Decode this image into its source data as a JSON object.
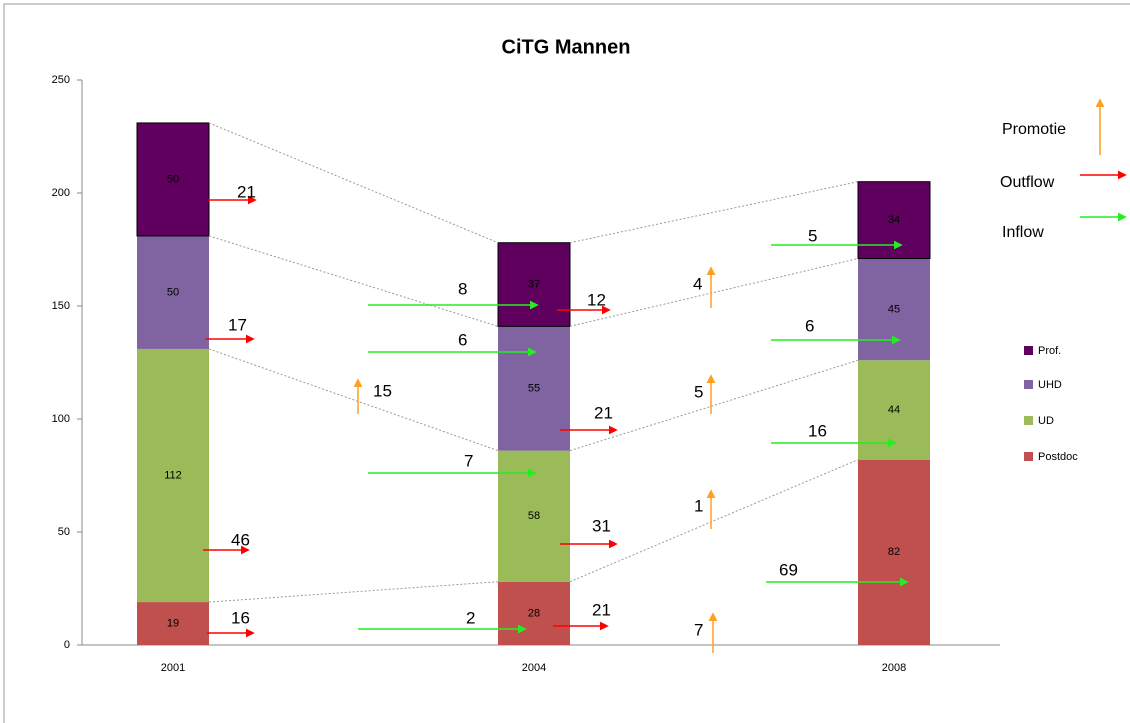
{
  "chart_data": {
    "type": "stacked_bar",
    "title": "CiTG Mannen",
    "categories": [
      "2001",
      "2004",
      "2008"
    ],
    "series": [
      {
        "name": "Postdoc",
        "color": "#c0504d",
        "values": [
          19,
          28,
          82
        ]
      },
      {
        "name": "UD",
        "color": "#9bbb59",
        "values": [
          112,
          58,
          44
        ]
      },
      {
        "name": "UHD",
        "color": "#8064a2",
        "values": [
          50,
          55,
          45
        ]
      },
      {
        "name": "Prof.",
        "color": "#5f005f",
        "values": [
          50,
          37,
          34
        ]
      }
    ],
    "ylim": [
      0,
      250
    ],
    "yticks": [
      0,
      50,
      100,
      150,
      200,
      250
    ],
    "flows": [
      {
        "name": "Promotie",
        "color": "#ffa020",
        "values": [
          15,
          4,
          5,
          1,
          7
        ]
      },
      {
        "name": "Outflow",
        "color": "#ff0000",
        "values": [
          21,
          17,
          46,
          16,
          12,
          21,
          31,
          21
        ]
      },
      {
        "name": "Inflow",
        "color": "#22ee22",
        "values": [
          8,
          6,
          7,
          2,
          5,
          6,
          16,
          69
        ]
      }
    ]
  }
}
